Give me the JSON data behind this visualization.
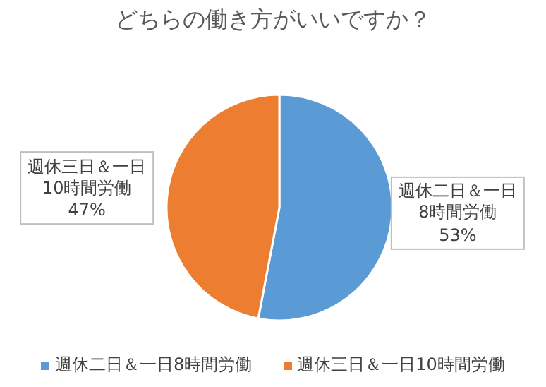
{
  "chart_data": {
    "type": "pie",
    "title": "どちらの働き方がいいですか？",
    "categories": [
      "週休二日＆一日8時間労働",
      "週休三日＆一日10時間労働"
    ],
    "values": [
      53,
      47
    ],
    "colors": [
      "#5b9bd5",
      "#ed7d31"
    ],
    "value_labels": [
      "53%",
      "47%"
    ],
    "legend": "bottom"
  }
}
